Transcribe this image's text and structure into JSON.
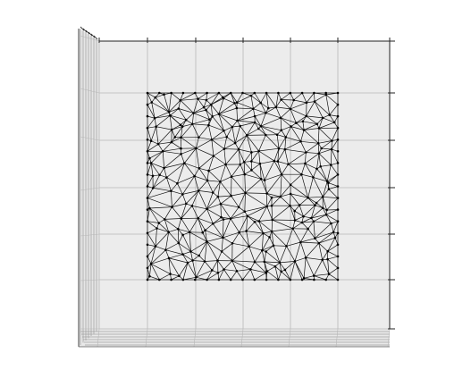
{
  "figure": {
    "type": "3d-axes-mesh-plot",
    "view": "top-down",
    "pane_color": "#ececec",
    "grid_color": "#b8b8b8",
    "axis_line_color": "#222222",
    "mesh_edge_color": "#111111",
    "mesh_node_color": "#000000",
    "tick_labels": [],
    "title": "",
    "xlabel": "",
    "ylabel": "",
    "zlabel": ""
  },
  "mesh": {
    "kind": "triangular",
    "shape": "square",
    "node_markers": true,
    "boundary_nodes_per_side": 16,
    "interior_density": "high"
  }
}
